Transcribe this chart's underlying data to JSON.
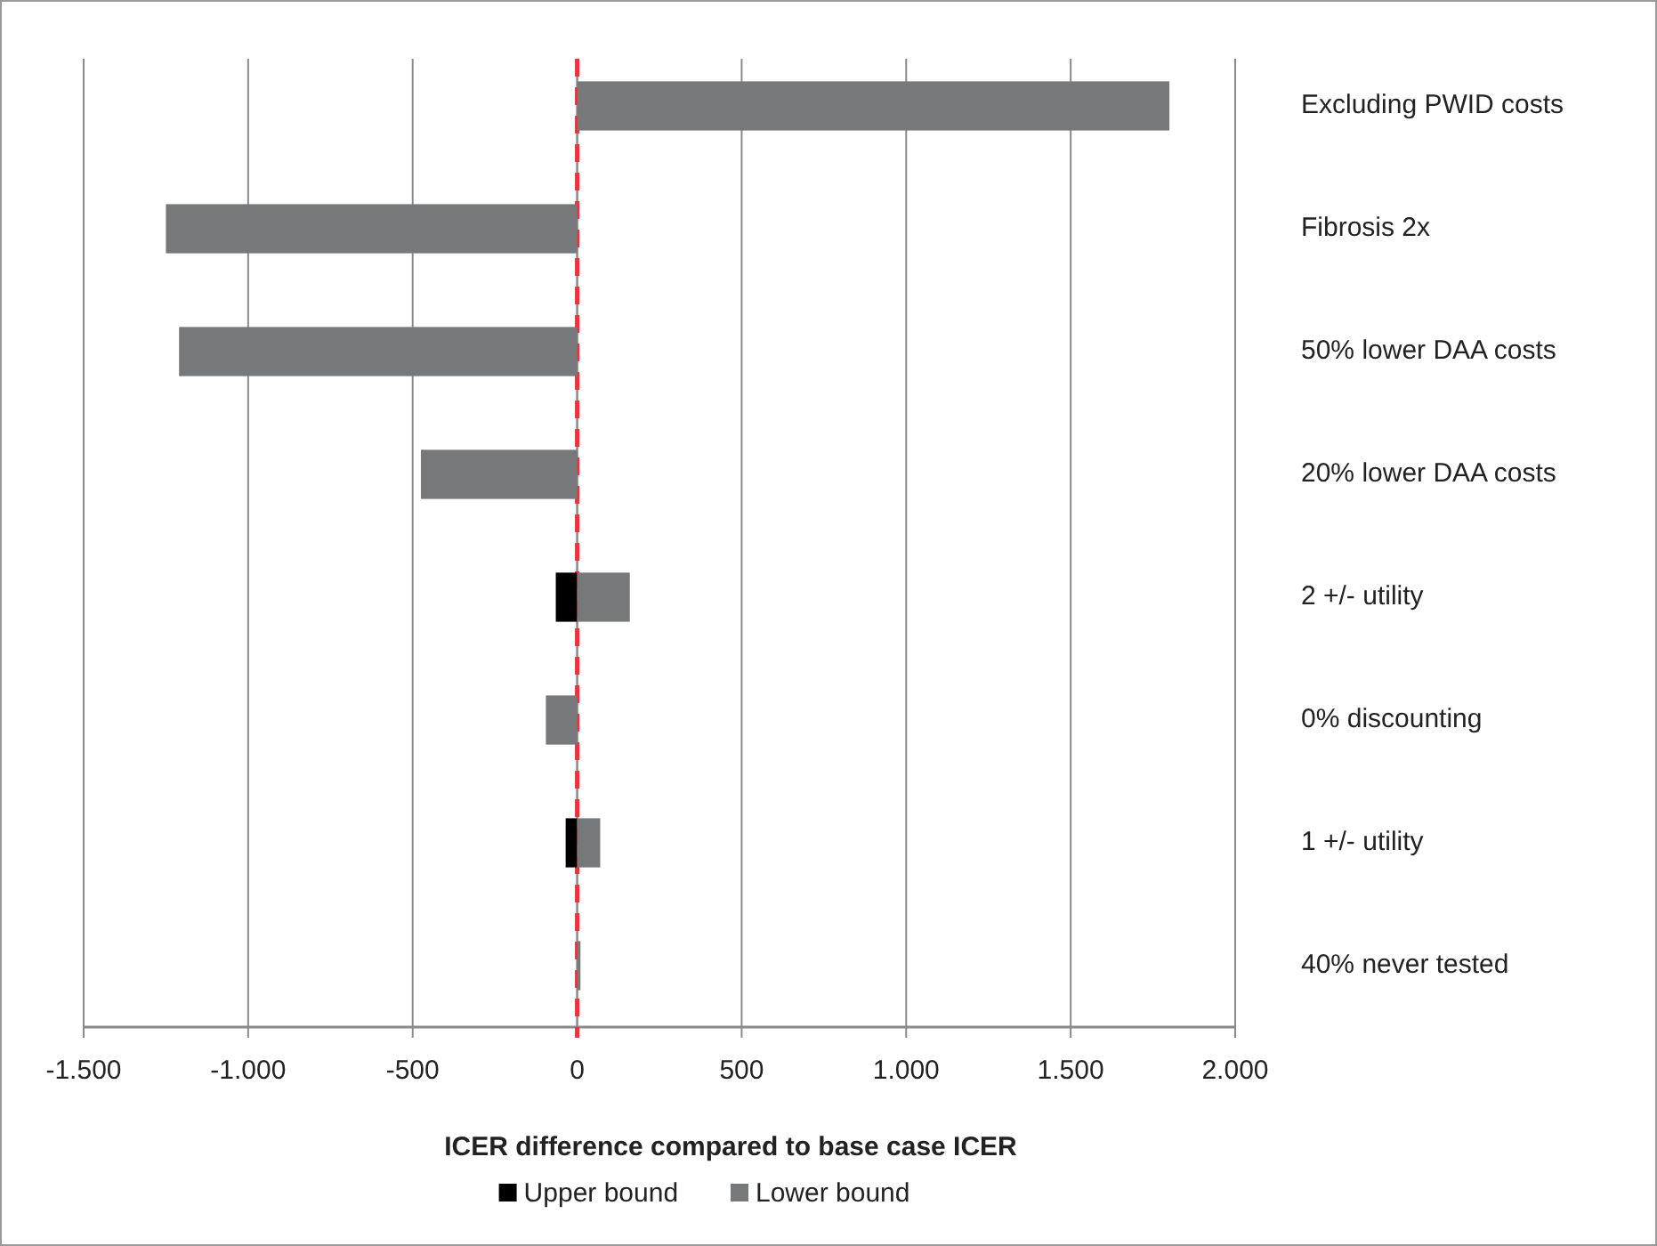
{
  "chart_data": {
    "type": "bar",
    "orientation": "horizontal",
    "xlabel": "ICER difference compared to base case ICER",
    "categories": [
      "Excluding PWID costs",
      "Fibrosis 2x",
      "50% lower DAA costs",
      "20% lower DAA costs",
      "2 +/- utility",
      "0% discounting",
      "1 +/- utility",
      "40% never tested"
    ],
    "series": [
      {
        "name": "Upper bound",
        "color": "#000000",
        "values": [
          null,
          null,
          null,
          null,
          -65,
          null,
          -35,
          null
        ]
      },
      {
        "name": "Lower bound",
        "color": "#76787a",
        "values": [
          1800,
          -1250,
          -1210,
          -475,
          160,
          -95,
          70,
          10
        ]
      }
    ],
    "xlim": [
      -1500,
      2000
    ],
    "xticks": [
      {
        "value": -1500,
        "label": "-1.500"
      },
      {
        "value": -1000,
        "label": "-1.000"
      },
      -500,
      0,
      500,
      {
        "value": 1000,
        "label": "1.000"
      },
      {
        "value": 1500,
        "label": "1.500"
      },
      {
        "value": 2000,
        "label": "2.000"
      }
    ],
    "grid": "x",
    "legend": "bottom",
    "ref_lines": [
      {
        "axis": "x",
        "value": 0,
        "color": "#e8343a",
        "line_style": "dashed"
      }
    ]
  }
}
